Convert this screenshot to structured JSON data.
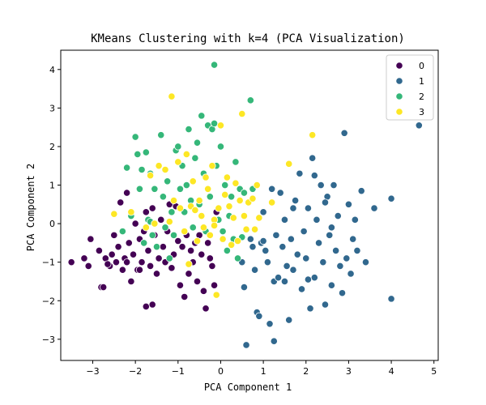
{
  "chart_data": {
    "type": "scatter",
    "title": "KMeans Clustering with k=4 (PCA Visualization)",
    "xlabel": "PCA Component 1",
    "ylabel": "PCA Component 2",
    "xlim": [
      -3.75,
      5.1
    ],
    "ylim": [
      -3.55,
      4.5
    ],
    "xticks": [
      -3,
      -2,
      -1,
      0,
      1,
      2,
      3,
      4,
      5
    ],
    "yticks": [
      -3,
      -2,
      -1,
      0,
      1,
      2,
      3,
      4
    ],
    "grid": false,
    "legend_position": "top-right",
    "series": [
      {
        "name": "0",
        "color": "#440154",
        "points": [
          [
            -3.5,
            -1.0
          ],
          [
            -3.2,
            -0.9
          ],
          [
            -3.1,
            -1.1
          ],
          [
            -3.05,
            -0.4
          ],
          [
            -2.85,
            -0.7
          ],
          [
            -2.8,
            -1.65
          ],
          [
            -2.75,
            -1.65
          ],
          [
            -2.7,
            -0.9
          ],
          [
            -2.6,
            -1.1
          ],
          [
            -2.55,
            -0.8
          ],
          [
            -2.5,
            -0.3
          ],
          [
            -2.45,
            -1.0
          ],
          [
            -2.4,
            -0.6
          ],
          [
            -2.35,
            0.55
          ],
          [
            -2.3,
            -1.2
          ],
          [
            -2.25,
            -0.9
          ],
          [
            -2.2,
            0.8
          ],
          [
            -2.2,
            -1.0
          ],
          [
            -2.15,
            -0.5
          ],
          [
            -2.1,
            -1.5
          ],
          [
            -2.05,
            -0.8
          ],
          [
            -2.0,
            0.0
          ],
          [
            -1.95,
            -1.2
          ],
          [
            -1.9,
            -0.4
          ],
          [
            -1.85,
            -1.0
          ],
          [
            -1.8,
            -0.2
          ],
          [
            -1.75,
            0.3
          ],
          [
            -1.7,
            -0.7
          ],
          [
            -1.65,
            -1.1
          ],
          [
            -1.6,
            0.4
          ],
          [
            -1.55,
            -0.3
          ],
          [
            -1.5,
            -1.3
          ],
          [
            -1.45,
            -0.9
          ],
          [
            -1.4,
            0.1
          ],
          [
            -1.35,
            -0.6
          ],
          [
            -1.3,
            -1.0
          ],
          [
            -1.25,
            -0.2
          ],
          [
            -1.2,
            0.5
          ],
          [
            -1.15,
            -1.15
          ],
          [
            -1.1,
            -0.8
          ],
          [
            -1.05,
            0.45
          ],
          [
            -1.0,
            -0.45
          ],
          [
            -0.95,
            -1.6
          ],
          [
            -0.9,
            -0.6
          ],
          [
            -0.85,
            -1.9
          ],
          [
            -0.8,
            -0.3
          ],
          [
            -0.75,
            -1.3
          ],
          [
            -0.7,
            -0.7
          ],
          [
            -0.65,
            -1.0
          ],
          [
            -0.6,
            -0.5
          ],
          [
            -0.55,
            -1.5
          ],
          [
            -0.5,
            -0.3
          ],
          [
            -0.45,
            -0.8
          ],
          [
            -0.4,
            -1.75
          ],
          [
            -0.35,
            -2.2
          ],
          [
            -0.3,
            -0.5
          ],
          [
            -0.25,
            -0.9
          ],
          [
            -0.2,
            -1.1
          ],
          [
            -0.15,
            -1.6
          ],
          [
            -0.1,
            0.3
          ],
          [
            -1.75,
            -2.15
          ],
          [
            -1.6,
            -2.1
          ],
          [
            -2.65,
            -1.05
          ],
          [
            -1.9,
            -1.2
          ]
        ]
      },
      {
        "name": "1",
        "color": "#31688e",
        "points": [
          [
            0.5,
            -1.0
          ],
          [
            0.55,
            -1.65
          ],
          [
            0.6,
            -3.15
          ],
          [
            0.7,
            -0.4
          ],
          [
            0.75,
            -0.6
          ],
          [
            0.8,
            -1.2
          ],
          [
            0.85,
            -2.3
          ],
          [
            0.9,
            -2.4
          ],
          [
            0.95,
            -0.5
          ],
          [
            1.0,
            0.3
          ],
          [
            1.05,
            -0.7
          ],
          [
            1.1,
            -1.0
          ],
          [
            1.15,
            -2.6
          ],
          [
            1.2,
            0.9
          ],
          [
            1.25,
            -1.5
          ],
          [
            1.3,
            -0.3
          ],
          [
            1.35,
            -1.4
          ],
          [
            1.4,
            0.8
          ],
          [
            1.45,
            -0.6
          ],
          [
            1.5,
            0.1
          ],
          [
            1.55,
            -1.1
          ],
          [
            1.6,
            -2.5
          ],
          [
            1.65,
            -0.4
          ],
          [
            1.7,
            -1.2
          ],
          [
            1.75,
            0.6
          ],
          [
            1.8,
            -0.8
          ],
          [
            1.85,
            1.3
          ],
          [
            1.9,
            -1.7
          ],
          [
            1.95,
            -0.2
          ],
          [
            2.0,
            -0.9
          ],
          [
            2.05,
            0.4
          ],
          [
            2.1,
            -2.2
          ],
          [
            2.15,
            1.7
          ],
          [
            2.2,
            -1.4
          ],
          [
            2.25,
            0.1
          ],
          [
            2.3,
            -0.5
          ],
          [
            2.35,
            1.0
          ],
          [
            2.4,
            -1.0
          ],
          [
            2.45,
            -2.1
          ],
          [
            2.5,
            0.7
          ],
          [
            2.55,
            -0.3
          ],
          [
            2.6,
            -1.6
          ],
          [
            2.65,
            1.0
          ],
          [
            2.7,
            -0.7
          ],
          [
            2.75,
            0.2
          ],
          [
            2.8,
            -1.1
          ],
          [
            2.85,
            -1.8
          ],
          [
            2.9,
            2.35
          ],
          [
            2.95,
            -0.9
          ],
          [
            3.0,
            0.5
          ],
          [
            3.05,
            -1.3
          ],
          [
            3.1,
            -0.4
          ],
          [
            3.15,
            0.1
          ],
          [
            3.2,
            -0.7
          ],
          [
            3.3,
            0.85
          ],
          [
            3.4,
            -1.0
          ],
          [
            3.6,
            0.4
          ],
          [
            4.0,
            0.65
          ],
          [
            4.0,
            -1.95
          ],
          [
            4.65,
            2.55
          ],
          [
            2.2,
            1.25
          ],
          [
            1.25,
            -3.05
          ],
          [
            1.5,
            -1.5
          ],
          [
            2.6,
            -0.1
          ],
          [
            2.05,
            -1.45
          ],
          [
            1.7,
            0.4
          ],
          [
            1.0,
            -0.45
          ],
          [
            2.45,
            0.55
          ]
        ]
      },
      {
        "name": "2",
        "color": "#35b779",
        "points": [
          [
            -2.3,
            -0.2
          ],
          [
            -2.2,
            1.45
          ],
          [
            -2.1,
            0.2
          ],
          [
            -2.0,
            2.25
          ],
          [
            -1.95,
            1.8
          ],
          [
            -1.9,
            0.9
          ],
          [
            -1.85,
            1.4
          ],
          [
            -1.8,
            -0.5
          ],
          [
            -1.75,
            1.85
          ],
          [
            -1.7,
            0.1
          ],
          [
            -1.65,
            1.3
          ],
          [
            -1.6,
            -0.3
          ],
          [
            -1.55,
            0.9
          ],
          [
            -1.5,
            -0.6
          ],
          [
            -1.45,
            1.5
          ],
          [
            -1.4,
            2.3
          ],
          [
            -1.35,
            0.7
          ],
          [
            -1.3,
            -0.1
          ],
          [
            -1.25,
            1.1
          ],
          [
            -1.2,
            -0.9
          ],
          [
            -1.15,
            0.3
          ],
          [
            -1.1,
            -0.3
          ],
          [
            -1.05,
            1.9
          ],
          [
            -1.0,
            2.0
          ],
          [
            -0.95,
            0.9
          ],
          [
            -0.9,
            1.5
          ],
          [
            -0.85,
            0.3
          ],
          [
            -0.8,
            1.0
          ],
          [
            -0.75,
            2.45
          ],
          [
            -0.7,
            0.6
          ],
          [
            -0.65,
            -0.1
          ],
          [
            -0.6,
            1.7
          ],
          [
            -0.55,
            2.1
          ],
          [
            -0.5,
            0.5
          ],
          [
            -0.45,
            2.8
          ],
          [
            -0.4,
            1.3
          ],
          [
            -0.35,
            -0.2
          ],
          [
            -0.3,
            2.55
          ],
          [
            -0.25,
            0.7
          ],
          [
            -0.2,
            2.45
          ],
          [
            -0.15,
            4.12
          ],
          [
            -0.1,
            1.5
          ],
          [
            -0.05,
            0.1
          ],
          [
            0.0,
            2.0
          ],
          [
            0.05,
            -0.2
          ],
          [
            0.1,
            1.0
          ],
          [
            0.15,
            -0.7
          ],
          [
            0.2,
            0.2
          ],
          [
            0.25,
            0.7
          ],
          [
            0.3,
            -0.4
          ],
          [
            0.35,
            1.6
          ],
          [
            0.4,
            -0.9
          ],
          [
            0.45,
            0.9
          ],
          [
            0.5,
            -0.35
          ],
          [
            0.55,
            0.8
          ],
          [
            0.7,
            3.2
          ],
          [
            0.75,
            0.9
          ],
          [
            -0.15,
            2.6
          ],
          [
            -1.65,
            0.05
          ]
        ]
      },
      {
        "name": "3",
        "color": "#fde725",
        "points": [
          [
            -2.5,
            0.25
          ],
          [
            -2.1,
            0.3
          ],
          [
            -1.75,
            -0.1
          ],
          [
            -1.65,
            1.25
          ],
          [
            -1.55,
            0.0
          ],
          [
            -1.45,
            1.5
          ],
          [
            -1.3,
            1.4
          ],
          [
            -1.2,
            0.05
          ],
          [
            -1.15,
            3.3
          ],
          [
            -1.1,
            0.6
          ],
          [
            -1.0,
            1.6
          ],
          [
            -0.95,
            0.4
          ],
          [
            -0.85,
            -0.2
          ],
          [
            -0.8,
            1.8
          ],
          [
            -0.75,
            -1.05
          ],
          [
            -0.7,
            0.45
          ],
          [
            -0.65,
            1.1
          ],
          [
            -0.6,
            0.35
          ],
          [
            -0.55,
            -0.45
          ],
          [
            -0.5,
            0.6
          ],
          [
            -0.45,
            0.2
          ],
          [
            -0.4,
            -0.1
          ],
          [
            -0.35,
            1.2
          ],
          [
            -0.3,
            0.9
          ],
          [
            -0.25,
            -0.3
          ],
          [
            -0.2,
            1.5
          ],
          [
            -0.15,
            0.1
          ],
          [
            -0.1,
            -1.85
          ],
          [
            -0.05,
            0.4
          ],
          [
            0.0,
            2.55
          ],
          [
            0.05,
            -0.4
          ],
          [
            0.1,
            0.75
          ],
          [
            0.15,
            1.2
          ],
          [
            0.2,
            0.45
          ],
          [
            0.25,
            -0.55
          ],
          [
            0.3,
            0.15
          ],
          [
            0.35,
            1.05
          ],
          [
            0.4,
            -0.45
          ],
          [
            0.45,
            0.6
          ],
          [
            0.5,
            2.85
          ],
          [
            0.55,
            0.2
          ],
          [
            0.6,
            -0.15
          ],
          [
            0.65,
            0.55
          ],
          [
            0.75,
            0.65
          ],
          [
            0.8,
            -0.15
          ],
          [
            0.85,
            1.0
          ],
          [
            0.9,
            0.15
          ],
          [
            1.2,
            0.55
          ],
          [
            1.6,
            1.55
          ],
          [
            2.15,
            2.3
          ],
          [
            -0.15,
            -0.05
          ]
        ]
      }
    ]
  }
}
